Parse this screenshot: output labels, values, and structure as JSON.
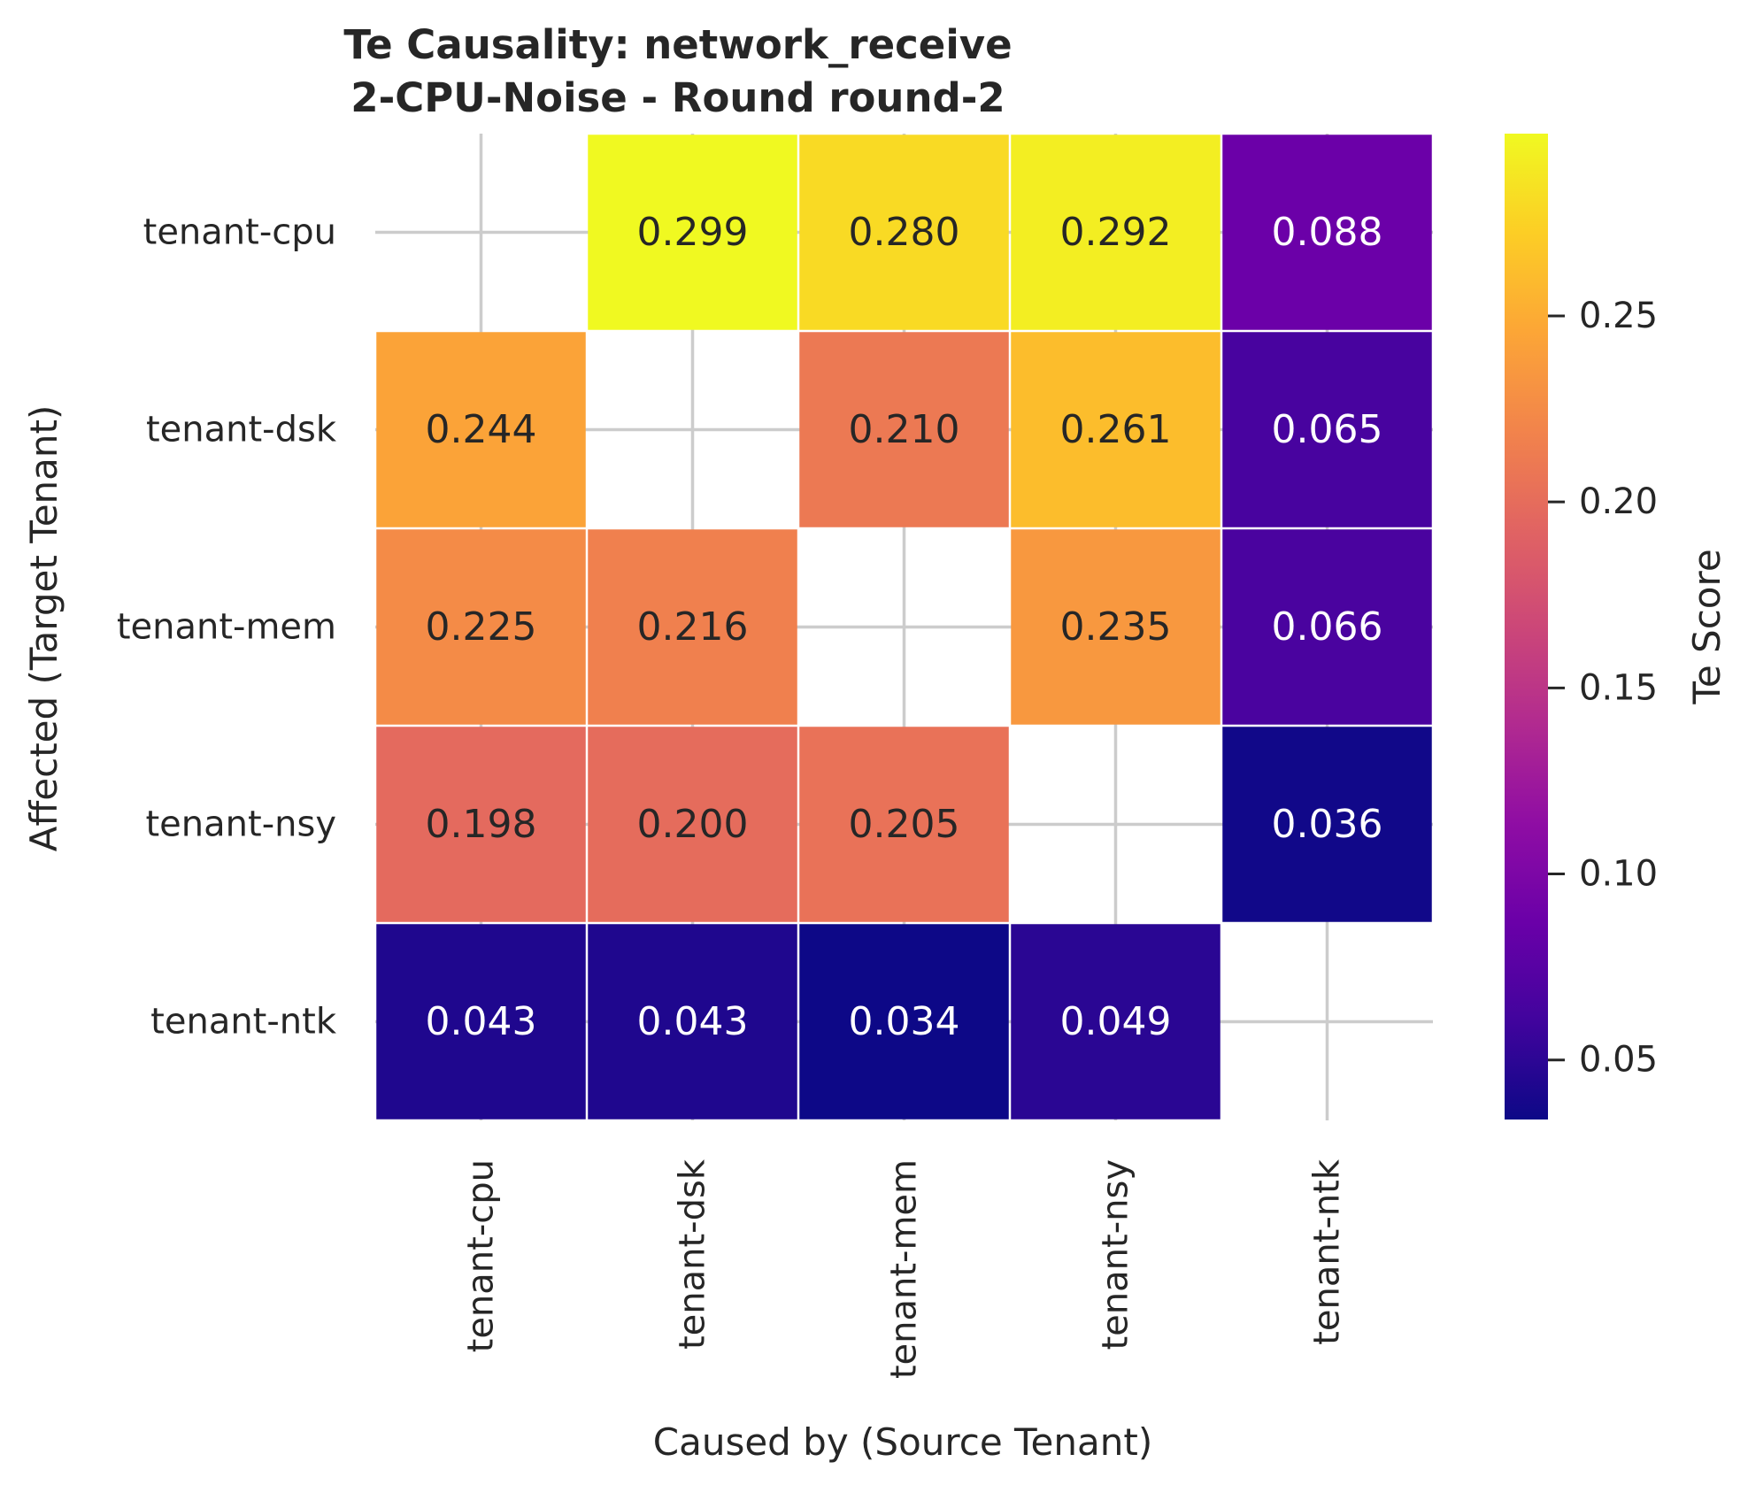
{
  "chart_data": {
    "type": "heatmap",
    "title": [
      "Te Causality: network_receive",
      "2-CPU-Noise - Round round-2"
    ],
    "xlabel": "Caused by (Source Tenant)",
    "ylabel": "Affected (Target Tenant)",
    "columns": [
      "tenant-cpu",
      "tenant-dsk",
      "tenant-mem",
      "tenant-nsy",
      "tenant-ntk"
    ],
    "rows": [
      "tenant-cpu",
      "tenant-dsk",
      "tenant-mem",
      "tenant-nsy",
      "tenant-ntk"
    ],
    "values": [
      [
        null,
        0.299,
        0.28,
        0.292,
        0.088
      ],
      [
        0.244,
        null,
        0.21,
        0.261,
        0.065
      ],
      [
        0.225,
        0.216,
        null,
        0.235,
        0.066
      ],
      [
        0.198,
        0.2,
        0.205,
        null,
        0.036
      ],
      [
        0.043,
        0.043,
        0.034,
        0.049,
        null
      ]
    ],
    "value_labels": [
      [
        null,
        "0.299",
        "0.280",
        "0.292",
        "0.088"
      ],
      [
        "0.244",
        null,
        "0.210",
        "0.261",
        "0.065"
      ],
      [
        "0.225",
        "0.216",
        null,
        "0.235",
        "0.066"
      ],
      [
        "0.198",
        "0.200",
        "0.205",
        null,
        "0.036"
      ],
      [
        "0.043",
        "0.043",
        "0.034",
        "0.049",
        null
      ]
    ],
    "colorbar": {
      "label": "Te Score",
      "colormap": "plasma",
      "range": [
        0.034,
        0.299
      ],
      "ticks": [
        0.05,
        0.1,
        0.15,
        0.2,
        0.25
      ],
      "tick_labels": [
        "0.05",
        "0.10",
        "0.15",
        "0.20",
        "0.25"
      ]
    },
    "grid": true
  }
}
